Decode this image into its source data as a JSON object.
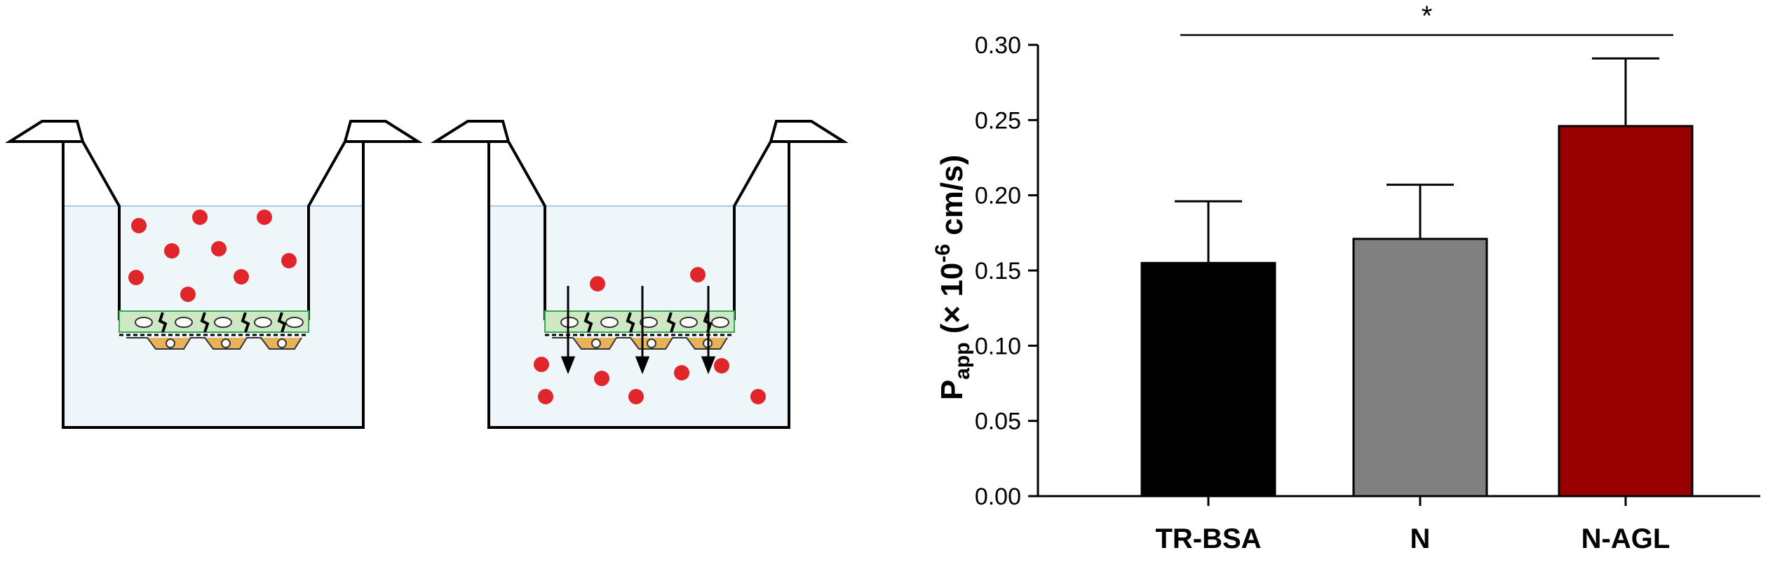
{
  "chart_data": {
    "type": "bar",
    "categories": [
      "TR-BSA",
      "N",
      "N-AGL"
    ],
    "values": [
      0.155,
      0.171,
      0.246
    ],
    "errors": [
      0.041,
      0.036,
      0.045
    ],
    "bar_colors": [
      "#000000",
      "#808080",
      "#990000"
    ],
    "ylim": [
      0,
      0.3
    ],
    "yticks": [
      "0.00",
      "0.05",
      "0.10",
      "0.15",
      "0.20",
      "0.25",
      "0.30"
    ],
    "ylabel": {
      "main": "P",
      "subscript": "app",
      "rest_before_sup": " (× 10",
      "superscript": "-6",
      "rest_after_sup": " cm/s)"
    },
    "significance": {
      "from": "TR-BSA",
      "to": "N-AGL",
      "label": "*"
    },
    "grid": false
  },
  "diagram": {
    "medium_color": "#eef6fa",
    "particle_color": "#e0262b",
    "cell_top_color": "#cfe8c4",
    "cell_bottom_color": "#e8b25a"
  }
}
